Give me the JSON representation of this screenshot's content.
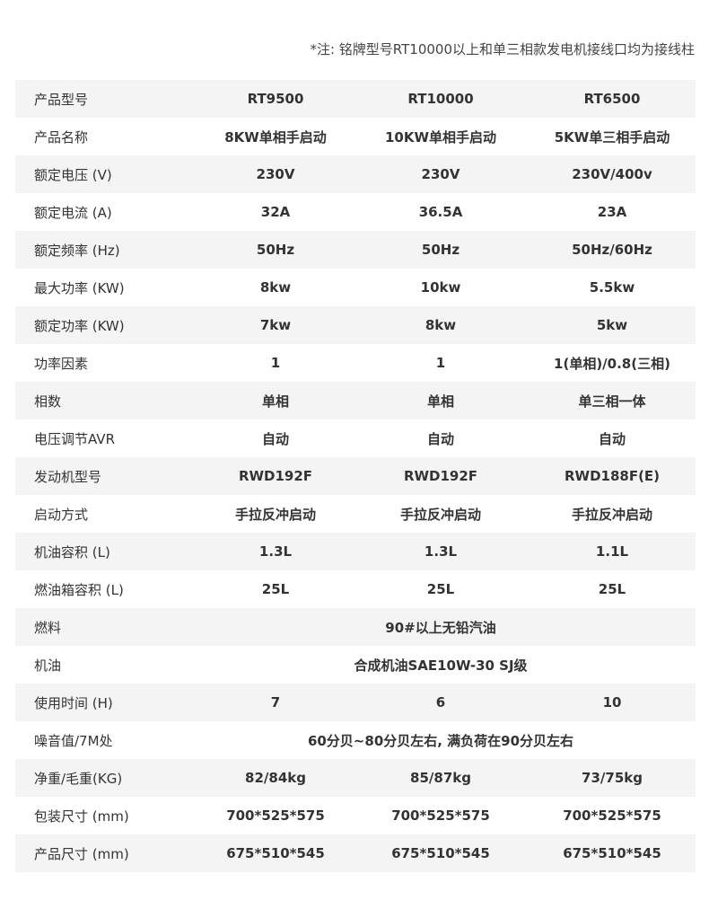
{
  "note": "*注: 铭牌型号RT10000以上和单三相款发电机接线口均为接线柱",
  "rows": [
    {
      "label": "产品型号",
      "values": [
        "RT9500",
        "RT10000",
        "RT6500"
      ]
    },
    {
      "label": "产品名称",
      "values": [
        "8KW单相手启动",
        "10KW单相手启动",
        "5KW单三相手启动"
      ]
    },
    {
      "label": "额定电压 (V)",
      "values": [
        "230V",
        "230V",
        "230V/400v"
      ]
    },
    {
      "label": "额定电流 (A)",
      "values": [
        "32A",
        "36.5A",
        "23A"
      ]
    },
    {
      "label": "额定频率 (Hz)",
      "values": [
        "50Hz",
        "50Hz",
        "50Hz/60Hz"
      ]
    },
    {
      "label": "最大功率 (KW)",
      "values": [
        "8kw",
        "10kw",
        "5.5kw"
      ]
    },
    {
      "label": "额定功率 (KW)",
      "values": [
        "7kw",
        "8kw",
        "5kw"
      ]
    },
    {
      "label": "功率因素",
      "values": [
        "1",
        "1",
        "1(单相)/0.8(三相)"
      ]
    },
    {
      "label": "相数",
      "values": [
        "单相",
        "单相",
        "单三相一体"
      ]
    },
    {
      "label": "电压调节AVR",
      "values": [
        "自动",
        "自动",
        "自动"
      ]
    },
    {
      "label": "发动机型号",
      "values": [
        "RWD192F",
        "RWD192F",
        "RWD188F(E)"
      ]
    },
    {
      "label": "启动方式",
      "values": [
        "手拉反冲启动",
        "手拉反冲启动",
        "手拉反冲启动"
      ]
    },
    {
      "label": "机油容积 (L)",
      "values": [
        "1.3L",
        "1.3L",
        "1.1L"
      ]
    },
    {
      "label": "燃油箱容积 (L)",
      "values": [
        "25L",
        "25L",
        "25L"
      ]
    },
    {
      "label": "燃料",
      "span": "90#以上无铅汽油"
    },
    {
      "label": "机油",
      "span": "合成机油SAE10W-30 SJ级"
    },
    {
      "label": "使用时间 (H)",
      "values": [
        "7",
        "6",
        "10"
      ]
    },
    {
      "label": "噪音值/7M处",
      "span": "60分贝~80分贝左右, 满负荷在90分贝左右"
    },
    {
      "label": "净重/毛重(KG)",
      "values": [
        "82/84kg",
        "85/87kg",
        "73/75kg"
      ]
    },
    {
      "label": "包装尺寸 (mm)",
      "values": [
        "700*525*575",
        "700*525*575",
        "700*525*575"
      ]
    },
    {
      "label": "产品尺寸 (mm)",
      "values": [
        "675*510*545",
        "675*510*545",
        "675*510*545"
      ]
    }
  ],
  "colors": {
    "stripe": "#f4f4f4",
    "text": "#333333"
  }
}
